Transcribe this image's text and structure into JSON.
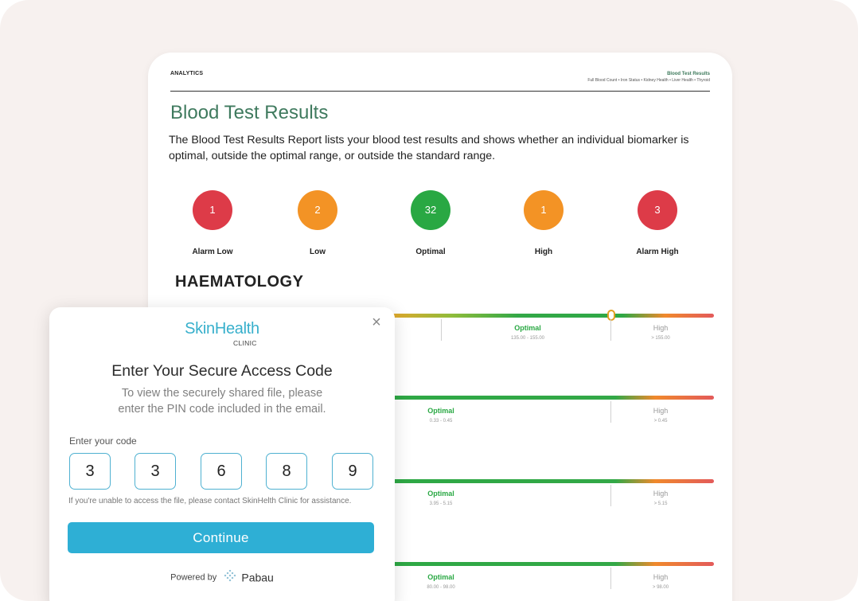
{
  "report": {
    "section_label": "ANALYTICS",
    "doc_title": "Blood Test Results",
    "doc_subtitle": "Full Blood Count • Iron Status • Kidney Health • Liver Health • Thyroid",
    "title": "Blood Test Results",
    "description": "The Blood Test Results Report lists your blood test results and shows whether an individual biomarker is optimal, outside the optimal range, or outside the standard range.",
    "summary": [
      {
        "count": "1",
        "label": "Alarm Low",
        "color": "#dd3b48"
      },
      {
        "count": "2",
        "label": "Low",
        "color": "#f39325"
      },
      {
        "count": "32",
        "label": "Optimal",
        "color": "#29a843"
      },
      {
        "count": "1",
        "label": "High",
        "color": "#f39325"
      },
      {
        "count": "3",
        "label": "Alarm High",
        "color": "#dd3b48"
      }
    ],
    "section_title": "HAEMATOLOGY",
    "ranges": [
      {
        "optimal_label": "Optimal",
        "optimal_range": "135.00 - 155.00",
        "high_label": "High",
        "high_range": "> 155.00"
      },
      {
        "optimal_label": "Optimal",
        "optimal_range": "0.33 - 0.45",
        "high_label": "High",
        "high_range": "> 0.45"
      },
      {
        "optimal_label": "Optimal",
        "optimal_range": "3.95 - 5.15",
        "high_label": "High",
        "high_range": "> 5.15"
      },
      {
        "optimal_label": "Optimal",
        "optimal_range": "80.00 - 98.00",
        "high_label": "High",
        "high_range": "> 98.00"
      }
    ]
  },
  "modal": {
    "logo_main": "SkinHealth",
    "logo_sub": "CLINIC",
    "title": "Enter Your Secure Access Code",
    "description_line1": "To view the securely shared file, please",
    "description_line2": "enter the PIN code included in the email.",
    "code_label": "Enter your code",
    "pin_digits": [
      "3",
      "3",
      "6",
      "8",
      "9"
    ],
    "help_text": "If you're unable to access the file, please contact SkinHelth Clinic for assistance.",
    "continue_label": "Continue",
    "powered_by_label": "Powered by",
    "powered_by_brand": "Pabau",
    "close_icon": "close-icon",
    "accent_color": "#2eafd5"
  }
}
